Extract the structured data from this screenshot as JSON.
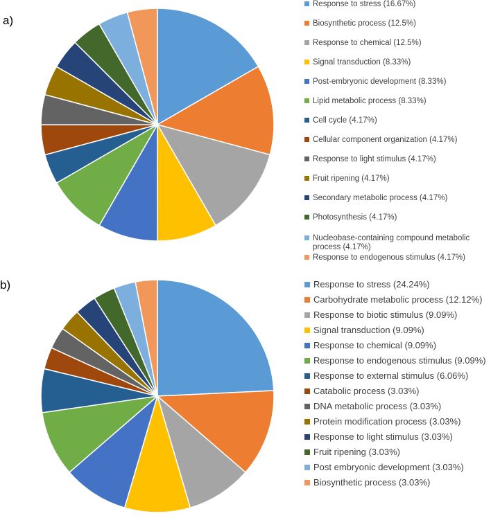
{
  "panels": [
    {
      "label": "a)",
      "chart_data": {
        "type": "pie",
        "title": "",
        "categories": [
          "Response to stress (16.67%)",
          "Biosynthetic process (12.5%)",
          "Response to chemical (12.5%)",
          "Signal transduction (8.33%)",
          "Post-embryonic development (8.33%)",
          "Lipid metabolic process (8.33%)",
          "Cell cycle (4.17%)",
          "Cellular component organization (4.17%)",
          "Response to light stimulus (4.17%)",
          "Fruit ripening (4.17%)",
          "Secondary metabolic process (4.17%)",
          "Photosynthesis (4.17%)",
          "Nucleobase-containing compound metabolic process (4.17%)",
          "Response to endogenous stimulus (4.17%)"
        ],
        "values": [
          16.67,
          12.5,
          12.5,
          8.33,
          8.33,
          8.33,
          4.17,
          4.17,
          4.17,
          4.17,
          4.17,
          4.17,
          4.17,
          4.17
        ],
        "colors": [
          "#5b9bd5",
          "#ed7d31",
          "#a5a5a5",
          "#ffc000",
          "#4472c4",
          "#70ad47",
          "#255e91",
          "#9e480e",
          "#636363",
          "#997300",
          "#264478",
          "#43682b",
          "#7cafdd",
          "#f1975a"
        ],
        "legend_position": "right"
      }
    },
    {
      "label": "b)",
      "chart_data": {
        "type": "pie",
        "title": "",
        "categories": [
          "Response to stress (24.24%)",
          "Carbohydrate metabolic process (12.12%)",
          "Response to biotic stimulus (9.09%)",
          "Signal transduction (9.09%)",
          "Response to chemical (9.09%)",
          "Response to endogenous stimulus (9.09%)",
          "Response to external stimulus (6.06%)",
          "Catabolic process (3.03%)",
          "DNA metabolic process (3.03%)",
          "Protein modification process (3.03%)",
          "Response to light stimulus (3.03%)",
          "Fruit ripening (3.03%)",
          "Post embryonic development (3.03%)",
          "Biosynthetic process (3.03%)"
        ],
        "values": [
          24.24,
          12.12,
          9.09,
          9.09,
          9.09,
          9.09,
          6.06,
          3.03,
          3.03,
          3.03,
          3.03,
          3.03,
          3.03,
          3.03
        ],
        "colors": [
          "#5b9bd5",
          "#ed7d31",
          "#a5a5a5",
          "#ffc000",
          "#4472c4",
          "#70ad47",
          "#255e91",
          "#9e480e",
          "#636363",
          "#997300",
          "#264478",
          "#43682b",
          "#7cafdd",
          "#f1975a"
        ],
        "legend_position": "right"
      }
    }
  ]
}
